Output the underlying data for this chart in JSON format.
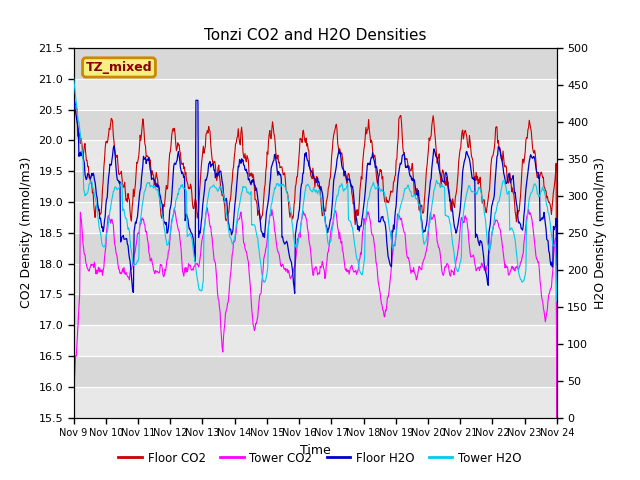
{
  "title": "Tonzi CO2 and H2O Densities",
  "xlabel": "Time",
  "ylabel_left": "CO2 Density (mmol/m3)",
  "ylabel_right": "H2O Density (mmol/m3)",
  "co2_ylim": [
    15.5,
    21.5
  ],
  "h2o_ylim": [
    0,
    500
  ],
  "co2_yticks": [
    15.5,
    16.0,
    16.5,
    17.0,
    17.5,
    18.0,
    18.5,
    19.0,
    19.5,
    20.0,
    20.5,
    21.0,
    21.5
  ],
  "h2o_yticks": [
    0,
    50,
    100,
    150,
    200,
    250,
    300,
    350,
    400,
    450,
    500
  ],
  "xtick_labels": [
    "Nov 9",
    "Nov 10",
    "Nov 11",
    "Nov 12",
    "Nov 13",
    "Nov 14",
    "Nov 15",
    "Nov 16",
    "Nov 17",
    "Nov 18",
    "Nov 19",
    "Nov 20",
    "Nov 21",
    "Nov 22",
    "Nov 23",
    "Nov 24"
  ],
  "annotation_text": "TZ_mixed",
  "annotation_bg": "#f5f080",
  "annotation_edge": "#cc8800",
  "floor_co2_color": "#cc0000",
  "tower_co2_color": "#ff00ff",
  "floor_h2o_color": "#0000cc",
  "tower_h2o_color": "#00ccee",
  "legend_labels": [
    "Floor CO2",
    "Tower CO2",
    "Floor H2O",
    "Tower H2O"
  ],
  "plot_bg_color": "#e8e8e8",
  "band_light": "#e8e8e8",
  "band_dark": "#d8d8d8",
  "seed": 123,
  "n_days": 15,
  "spd": 48
}
